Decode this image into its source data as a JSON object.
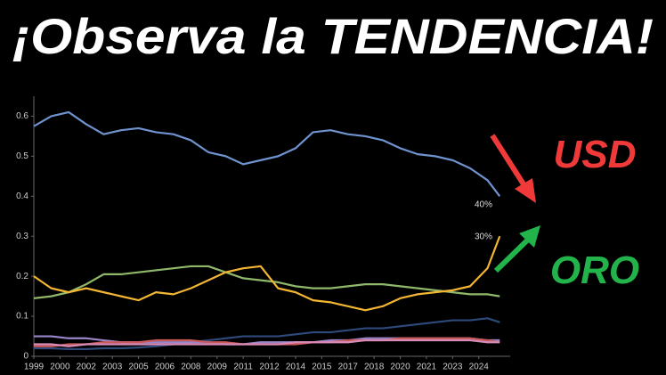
{
  "chart_data": {
    "type": "line",
    "title": "¡Observa la TENDENCIA!",
    "annotations": [
      "40%",
      "30%",
      "USD",
      "ORO"
    ],
    "x": [
      1999,
      2000,
      2001,
      2002,
      2003,
      2004,
      2005,
      2006,
      2007,
      2008,
      2009,
      2010,
      2011,
      2012,
      2013,
      2014,
      2015,
      2016,
      2017,
      2018,
      2019,
      2020,
      2021,
      2022,
      2023,
      2024,
      2025,
      2025.7
    ],
    "series": [
      {
        "color": "#6f93cf",
        "values": [
          0.575,
          0.6,
          0.61,
          0.58,
          0.555,
          0.565,
          0.57,
          0.56,
          0.555,
          0.54,
          0.51,
          0.5,
          0.48,
          0.49,
          0.5,
          0.52,
          0.56,
          0.565,
          0.555,
          0.55,
          0.54,
          0.52,
          0.505,
          0.5,
          0.49,
          0.47,
          0.44,
          0.4
        ]
      },
      {
        "color": "#8fb86a",
        "values": [
          0.145,
          0.15,
          0.16,
          0.18,
          0.205,
          0.205,
          0.21,
          0.215,
          0.22,
          0.225,
          0.225,
          0.21,
          0.195,
          0.19,
          0.185,
          0.175,
          0.17,
          0.17,
          0.175,
          0.18,
          0.18,
          0.175,
          0.17,
          0.165,
          0.16,
          0.155,
          0.155,
          0.15
        ]
      },
      {
        "color": "#f2b632",
        "values": [
          0.2,
          0.17,
          0.16,
          0.17,
          0.16,
          0.15,
          0.14,
          0.16,
          0.155,
          0.17,
          0.19,
          0.21,
          0.22,
          0.225,
          0.17,
          0.16,
          0.14,
          0.135,
          0.125,
          0.115,
          0.125,
          0.145,
          0.155,
          0.16,
          0.165,
          0.175,
          0.22,
          0.3
        ]
      },
      {
        "color": "#2e4a7a",
        "values": [
          0.02,
          0.02,
          0.018,
          0.018,
          0.02,
          0.02,
          0.022,
          0.025,
          0.03,
          0.035,
          0.04,
          0.045,
          0.05,
          0.05,
          0.05,
          0.055,
          0.06,
          0.06,
          0.065,
          0.07,
          0.07,
          0.075,
          0.08,
          0.085,
          0.09,
          0.09,
          0.095,
          0.085
        ]
      },
      {
        "color": "#9a86c8",
        "values": [
          0.05,
          0.05,
          0.045,
          0.045,
          0.04,
          0.035,
          0.035,
          0.035,
          0.035,
          0.035,
          0.035,
          0.03,
          0.03,
          0.035,
          0.035,
          0.035,
          0.035,
          0.04,
          0.04,
          0.045,
          0.045,
          0.045,
          0.045,
          0.045,
          0.045,
          0.045,
          0.04,
          0.04
        ]
      },
      {
        "color": "#c95a5a",
        "values": [
          0.025,
          0.025,
          0.03,
          0.03,
          0.035,
          0.035,
          0.035,
          0.04,
          0.04,
          0.04,
          0.035,
          0.035,
          0.03,
          0.03,
          0.03,
          0.03,
          0.035,
          0.035,
          0.04,
          0.04,
          0.04,
          0.045,
          0.045,
          0.045,
          0.045,
          0.045,
          0.04,
          0.035
        ]
      },
      {
        "color": "#d98bb8",
        "values": [
          0.03,
          0.03,
          0.025,
          0.03,
          0.03,
          0.03,
          0.03,
          0.03,
          0.03,
          0.03,
          0.03,
          0.03,
          0.03,
          0.03,
          0.03,
          0.035,
          0.035,
          0.035,
          0.035,
          0.04,
          0.04,
          0.04,
          0.04,
          0.04,
          0.04,
          0.04,
          0.035,
          0.035
        ]
      }
    ],
    "xlim": [
      1999,
      2026.3
    ],
    "xticks": [
      {
        "value": 1999,
        "label": "1999"
      },
      {
        "value": 2000.5,
        "label": "2000"
      },
      {
        "value": 2002,
        "label": "2002"
      },
      {
        "value": 2003.5,
        "label": "2003"
      },
      {
        "value": 2005,
        "label": "2005"
      },
      {
        "value": 2006.5,
        "label": "2006"
      },
      {
        "value": 2008,
        "label": "2008"
      },
      {
        "value": 2009.5,
        "label": "2009"
      },
      {
        "value": 2011,
        "label": "2011"
      },
      {
        "value": 2012.5,
        "label": "2012"
      },
      {
        "value": 2014,
        "label": "2014"
      },
      {
        "value": 2015.5,
        "label": "2015"
      },
      {
        "value": 2017,
        "label": "2017"
      },
      {
        "value": 2018.5,
        "label": "2018"
      },
      {
        "value": 2020,
        "label": "2020"
      },
      {
        "value": 2021.5,
        "label": "2021"
      },
      {
        "value": 2023,
        "label": "2023"
      },
      {
        "value": 2024.5,
        "label": "2024"
      }
    ],
    "ylim": [
      0,
      0.65
    ],
    "yticks": [
      0,
      0.1,
      0.2,
      0.3,
      0.4,
      0.5,
      0.6
    ]
  }
}
